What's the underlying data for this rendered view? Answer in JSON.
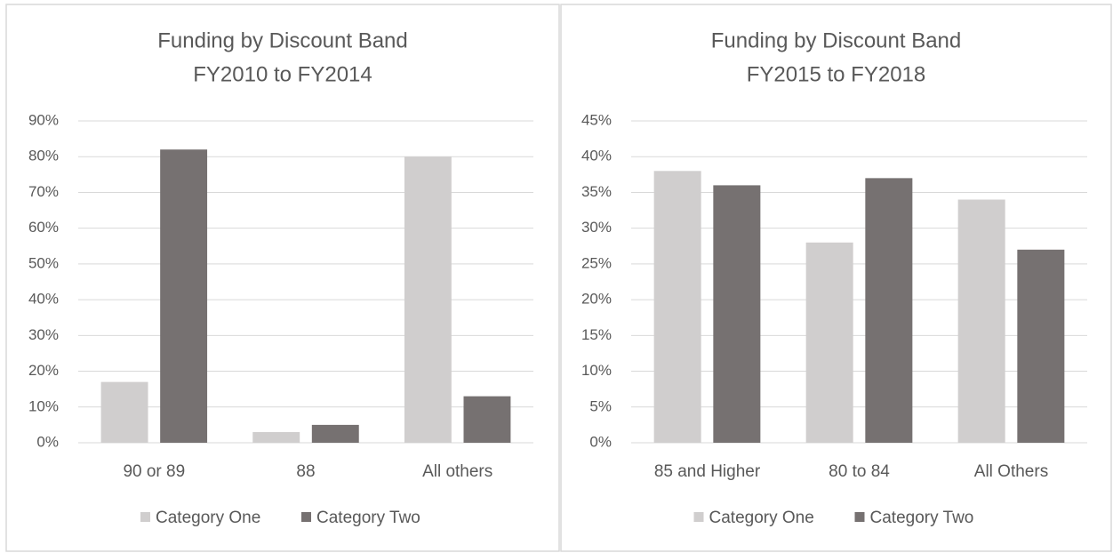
{
  "chart_data": [
    {
      "type": "bar",
      "title": "Funding by Discount Band",
      "subtitle": "FY2010 to FY2014",
      "categories": [
        "90 or 89",
        "88",
        "All others"
      ],
      "series": [
        {
          "name": "Category One",
          "color": "#d0cece",
          "values": [
            17,
            3,
            80
          ]
        },
        {
          "name": "Category Two",
          "color": "#767171",
          "values": [
            82,
            5,
            13
          ]
        }
      ],
      "ylim": [
        0,
        90
      ],
      "yticks": [
        {
          "value": 0,
          "label": "0%"
        },
        {
          "value": 10,
          "label": "10%"
        },
        {
          "value": 20,
          "label": "20%"
        },
        {
          "value": 30,
          "label": "30%"
        },
        {
          "value": 40,
          "label": "40%"
        },
        {
          "value": 50,
          "label": "50%"
        },
        {
          "value": 60,
          "label": "60%"
        },
        {
          "value": 70,
          "label": "70%"
        },
        {
          "value": 80,
          "label": "80%"
        },
        {
          "value": 90,
          "label": "90%"
        }
      ],
      "grid": true,
      "legend": "bottom"
    },
    {
      "type": "bar",
      "title": "Funding by Discount Band",
      "subtitle": "FY2015 to FY2018",
      "categories": [
        "85 and Higher",
        "80 to 84",
        "All Others"
      ],
      "series": [
        {
          "name": "Category One",
          "color": "#d0cece",
          "values": [
            38,
            28,
            34
          ]
        },
        {
          "name": "Category Two",
          "color": "#767171",
          "values": [
            36,
            37,
            27
          ]
        }
      ],
      "ylim": [
        0,
        45
      ],
      "yticks": [
        {
          "value": 0,
          "label": "0%"
        },
        {
          "value": 5,
          "label": "5%"
        },
        {
          "value": 10,
          "label": "10%"
        },
        {
          "value": 15,
          "label": "15%"
        },
        {
          "value": 20,
          "label": "20%"
        },
        {
          "value": 25,
          "label": "25%"
        },
        {
          "value": 30,
          "label": "30%"
        },
        {
          "value": 35,
          "label": "35%"
        },
        {
          "value": 40,
          "label": "40%"
        },
        {
          "value": 45,
          "label": "45%"
        }
      ],
      "grid": true,
      "legend": "bottom"
    }
  ]
}
